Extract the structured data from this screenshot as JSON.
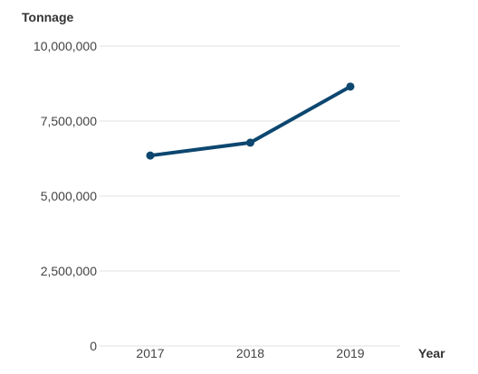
{
  "chart_data": {
    "type": "line",
    "title": "",
    "ylabel": "Tonnage",
    "xlabel": "Year",
    "categories": [
      "2017",
      "2018",
      "2019"
    ],
    "series": [
      {
        "values": [
          6350000,
          6780000,
          8650000
        ]
      }
    ],
    "ylim": [
      0,
      10000000
    ],
    "yticks": [
      {
        "value": 0,
        "label": "0"
      },
      {
        "value": 2500000,
        "label": "2,500,000"
      },
      {
        "value": 5000000,
        "label": "5,000,000"
      },
      {
        "value": 7500000,
        "label": "7,500,000"
      },
      {
        "value": 10000000,
        "label": "10,000,000"
      }
    ],
    "grid": true,
    "line_color": "#0d4770",
    "grid_color": "#e2e2e2"
  }
}
